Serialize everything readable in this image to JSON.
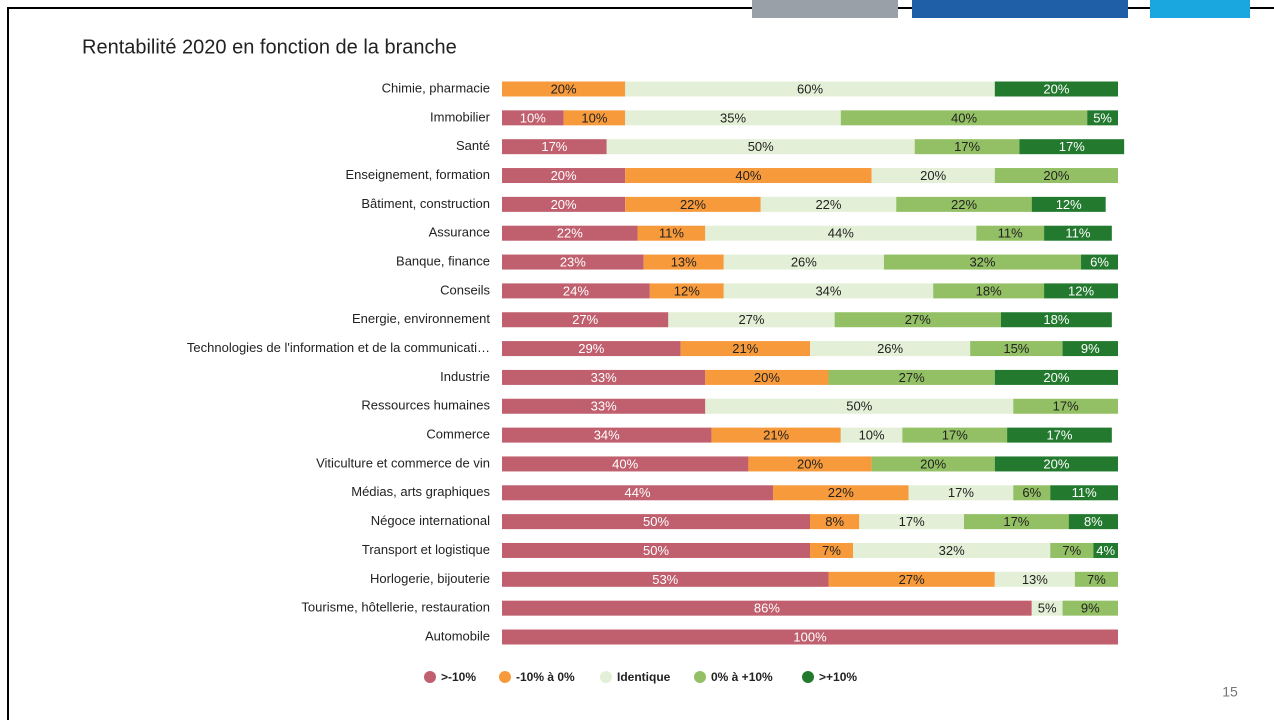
{
  "slide": {
    "page_number": "15"
  },
  "chart_data": {
    "type": "stacked-bar-horizontal",
    "title": "Rentabilité 2020 en fonction de la branche",
    "categories": [
      "Chimie, pharmacie",
      "Immobilier",
      "Santé",
      "Enseignement, formation",
      "Bâtiment, construction",
      "Assurance",
      "Banque, finance",
      "Conseils",
      "Energie, environnement",
      "Technologies de l'information et de la communicati…",
      "Industrie",
      "Ressources humaines",
      "Commerce",
      "Viticulture et commerce de vin",
      "Médias, arts graphiques",
      "Négoce international",
      "Transport et logistique",
      "Horlogerie, bijouterie",
      "Tourisme, hôtellerie, restauration",
      "Automobile"
    ],
    "xlim": [
      0,
      100
    ],
    "legend": "bottom",
    "series": [
      {
        "name": ">-10%",
        "color": "#c0606e",
        "values": [
          null,
          10,
          17,
          20,
          20,
          22,
          23,
          24,
          27,
          29,
          33,
          33,
          34,
          40,
          44,
          50,
          50,
          53,
          86,
          100
        ],
        "value_labels": [
          null,
          "10%",
          "17%",
          "20%",
          "20%",
          "22%",
          "23%",
          "24%",
          "27%",
          "29%",
          "33%",
          "33%",
          "34%",
          "40%",
          "44%",
          "50%",
          "50%",
          "53%",
          "86%",
          "100%"
        ]
      },
      {
        "name": "-10% à 0%",
        "color": "#f79a3b",
        "values": [
          20,
          10,
          null,
          40,
          22,
          11,
          13,
          12,
          null,
          21,
          20,
          null,
          21,
          20,
          22,
          8,
          7,
          27,
          null,
          null
        ],
        "value_labels": [
          "20%",
          "10%",
          null,
          "40%",
          "22%",
          "11%",
          "13%",
          "12%",
          null,
          "21%",
          "20%",
          null,
          "21%",
          "20%",
          "22%",
          "8%",
          "7%",
          "27%",
          null,
          null
        ]
      },
      {
        "name": "Identique",
        "color": "#e3efd6",
        "values": [
          60,
          35,
          50,
          20,
          22,
          44,
          26,
          34,
          27,
          26,
          null,
          50,
          10,
          null,
          17,
          17,
          32,
          13,
          5,
          null
        ],
        "value_labels": [
          "60%",
          "35%",
          "50%",
          "20%",
          "22%",
          "44%",
          "26%",
          "34%",
          "27%",
          "26%",
          null,
          "50%",
          "10%",
          null,
          "17%",
          "17%",
          "32%",
          "13%",
          "5%",
          null
        ]
      },
      {
        "name": "0% à +10%",
        "color": "#93c064",
        "values": [
          null,
          40,
          17,
          20,
          22,
          11,
          32,
          18,
          27,
          15,
          27,
          17,
          17,
          20,
          6,
          17,
          7,
          7,
          9,
          null
        ],
        "value_labels": [
          null,
          "40%",
          "17%",
          "20%",
          "22%",
          "11%",
          "32%",
          "18%",
          "27%",
          "15%",
          "27%",
          "17%",
          "17%",
          "20%",
          "6%",
          "17%",
          "7%",
          "7%",
          "9%",
          null
        ]
      },
      {
        "name": ">+10%",
        "color": "#237a2f",
        "values": [
          20,
          5,
          17,
          null,
          12,
          11,
          6,
          12,
          18,
          9,
          20,
          null,
          17,
          20,
          11,
          8,
          4,
          null,
          null,
          null
        ],
        "value_labels": [
          "20%",
          "5%",
          "17%",
          null,
          "12%",
          "11%",
          "6%",
          "12%",
          "18%",
          "9%",
          "20%",
          null,
          "17%",
          "20%",
          "11%",
          "8%",
          "4%",
          null,
          null,
          null
        ]
      }
    ]
  }
}
